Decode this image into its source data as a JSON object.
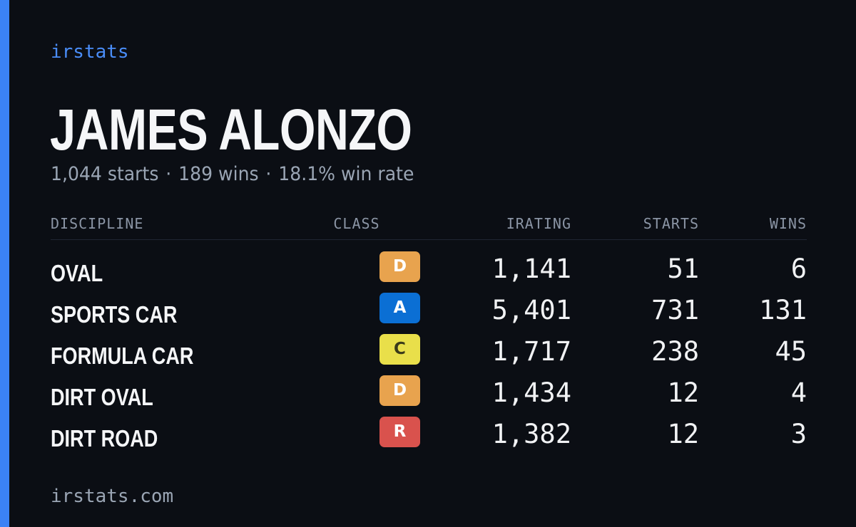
{
  "brand": "irstats",
  "driver": {
    "name": "JAMES ALONZO",
    "starts": "1,044 starts",
    "wins": "189 wins",
    "win_rate": "18.1% win rate",
    "separator": "·"
  },
  "table": {
    "headers": {
      "discipline": "DISCIPLINE",
      "class": "CLASS",
      "irating": "IRATING",
      "starts": "STARTS",
      "wins": "WINS"
    },
    "rows": [
      {
        "discipline": "OVAL",
        "class": "D",
        "class_bg": "#e8a34e",
        "class_fg": "#ffffff",
        "irating": "1,141",
        "starts": "51",
        "wins": "6"
      },
      {
        "discipline": "SPORTS CAR",
        "class": "A",
        "class_bg": "#0b6fd4",
        "class_fg": "#ffffff",
        "irating": "5,401",
        "starts": "731",
        "wins": "131"
      },
      {
        "discipline": "FORMULA CAR",
        "class": "C",
        "class_bg": "#e9df4a",
        "class_fg": "#3a3a1a",
        "irating": "1,717",
        "starts": "238",
        "wins": "45"
      },
      {
        "discipline": "DIRT OVAL",
        "class": "D",
        "class_bg": "#e8a34e",
        "class_fg": "#ffffff",
        "irating": "1,434",
        "starts": "12",
        "wins": "4"
      },
      {
        "discipline": "DIRT ROAD",
        "class": "R",
        "class_bg": "#d9524d",
        "class_fg": "#ffffff",
        "irating": "1,382",
        "starts": "12",
        "wins": "3"
      }
    ]
  },
  "footer": "irstats.com",
  "colors": {
    "background": "#0b0e14",
    "accent": "#3b82f6",
    "brand": "#4a8df8",
    "muted": "#9aa5b4",
    "text": "#f5f6f8"
  }
}
